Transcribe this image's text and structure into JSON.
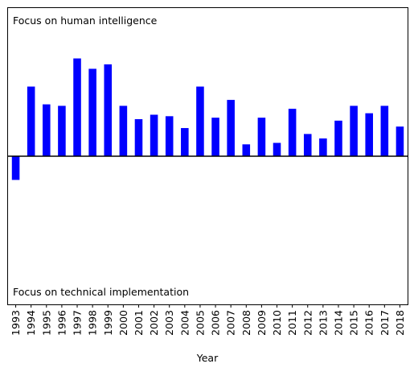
{
  "chart_data": {
    "type": "bar",
    "title": "",
    "xlabel": "Year",
    "ylabel": "",
    "annotation_top": "Focus on human intelligence",
    "annotation_bottom": "Focus on technical implementation",
    "categories": [
      "1993",
      "1994",
      "1995",
      "1996",
      "1997",
      "1998",
      "1999",
      "2000",
      "2001",
      "2002",
      "2003",
      "2004",
      "2005",
      "2006",
      "2007",
      "2008",
      "2009",
      "2010",
      "2011",
      "2012",
      "2013",
      "2014",
      "2015",
      "2016",
      "2017",
      "2018"
    ],
    "values": [
      -0.16,
      0.47,
      0.35,
      0.34,
      0.66,
      0.59,
      0.62,
      0.34,
      0.25,
      0.28,
      0.27,
      0.19,
      0.47,
      0.26,
      0.38,
      0.08,
      0.26,
      0.09,
      0.32,
      0.15,
      0.12,
      0.24,
      0.34,
      0.29,
      0.34,
      0.2
    ],
    "ylim": [
      -1.0,
      1.0
    ],
    "bar_color": "#0000ff",
    "zero_line": true,
    "grid": false,
    "y_ticks_shown": false
  }
}
